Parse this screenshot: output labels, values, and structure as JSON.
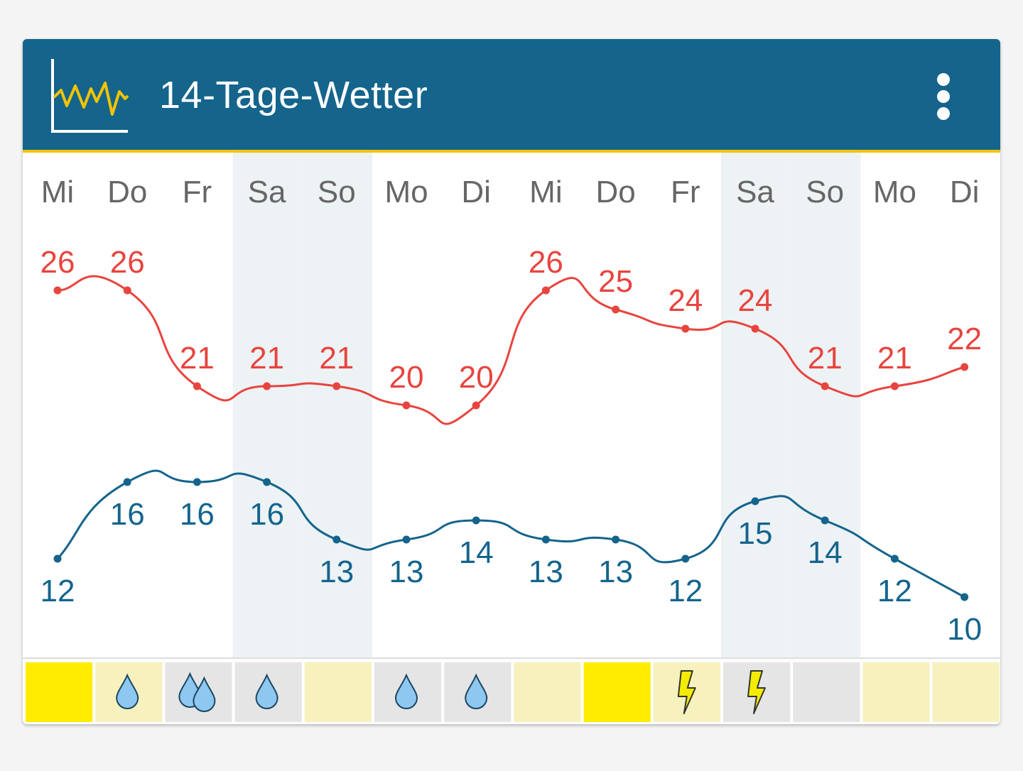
{
  "header": {
    "title": "14-Tage-Wetter",
    "app_icon": "line-chart-icon",
    "menu_icon": "more-vert-icon"
  },
  "colors": {
    "header_bg": "#14648c",
    "header_accent": "#f2c400",
    "max_line": "#e8443e",
    "min_line": "#14648c",
    "weekend_shade": "#edf2f5",
    "sunny": "#ffec00",
    "light": "#f6f1bd",
    "grey": "#e5e5e5",
    "drop": "#8ec8f0",
    "bolt": "#f4ec00"
  },
  "chart_data": {
    "type": "line",
    "days": [
      "Mi",
      "Do",
      "Fr",
      "Sa",
      "So",
      "Mo",
      "Di",
      "Mi",
      "Do",
      "Fr",
      "Sa",
      "So",
      "Mo",
      "Di"
    ],
    "weekend": [
      false,
      false,
      false,
      true,
      true,
      false,
      false,
      false,
      false,
      false,
      true,
      true,
      false,
      false
    ],
    "series": [
      {
        "values": [
          26,
          26,
          21,
          21,
          21,
          20,
          20,
          26,
          25,
          24,
          24,
          21,
          21,
          22
        ]
      },
      {
        "values": [
          12,
          16,
          16,
          16,
          13,
          13,
          14,
          13,
          13,
          12,
          15,
          14,
          12,
          10
        ]
      }
    ],
    "weather": [
      {
        "icon": "",
        "bg": "sunny"
      },
      {
        "icon": "raindrop-icon",
        "bg": "light"
      },
      {
        "icon": "raindrops-icon",
        "bg": "grey"
      },
      {
        "icon": "raindrop-icon",
        "bg": "grey"
      },
      {
        "icon": "",
        "bg": "light"
      },
      {
        "icon": "raindrop-icon",
        "bg": "grey"
      },
      {
        "icon": "raindrop-icon",
        "bg": "grey"
      },
      {
        "icon": "",
        "bg": "light"
      },
      {
        "icon": "",
        "bg": "sunny"
      },
      {
        "icon": "lightning-icon",
        "bg": "light"
      },
      {
        "icon": "lightning-icon",
        "bg": "grey"
      },
      {
        "icon": "",
        "bg": "grey"
      },
      {
        "icon": "",
        "bg": "light"
      },
      {
        "icon": "",
        "bg": "light"
      }
    ]
  }
}
